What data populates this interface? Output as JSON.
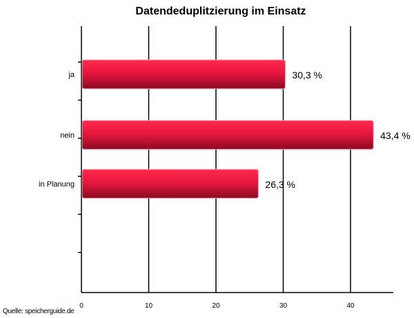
{
  "chart_data": {
    "type": "bar",
    "orientation": "horizontal",
    "title": "Datendeduplitzierung im Einsatz",
    "categories": [
      "ja",
      "nein",
      "in Planung"
    ],
    "values": [
      30.3,
      43.4,
      26.3
    ],
    "value_labels": [
      "30,3 %",
      "43,4 %",
      "26,3 %"
    ],
    "xlim": [
      0,
      46
    ],
    "xticks": [
      0,
      10,
      20,
      30,
      40
    ],
    "xlabel": "",
    "ylabel": "",
    "grid": true,
    "legend": "none",
    "bar_color": "#e8173e",
    "bar_color_dark": "#8a0a22"
  },
  "source": "Quelle: speicherguide.de"
}
